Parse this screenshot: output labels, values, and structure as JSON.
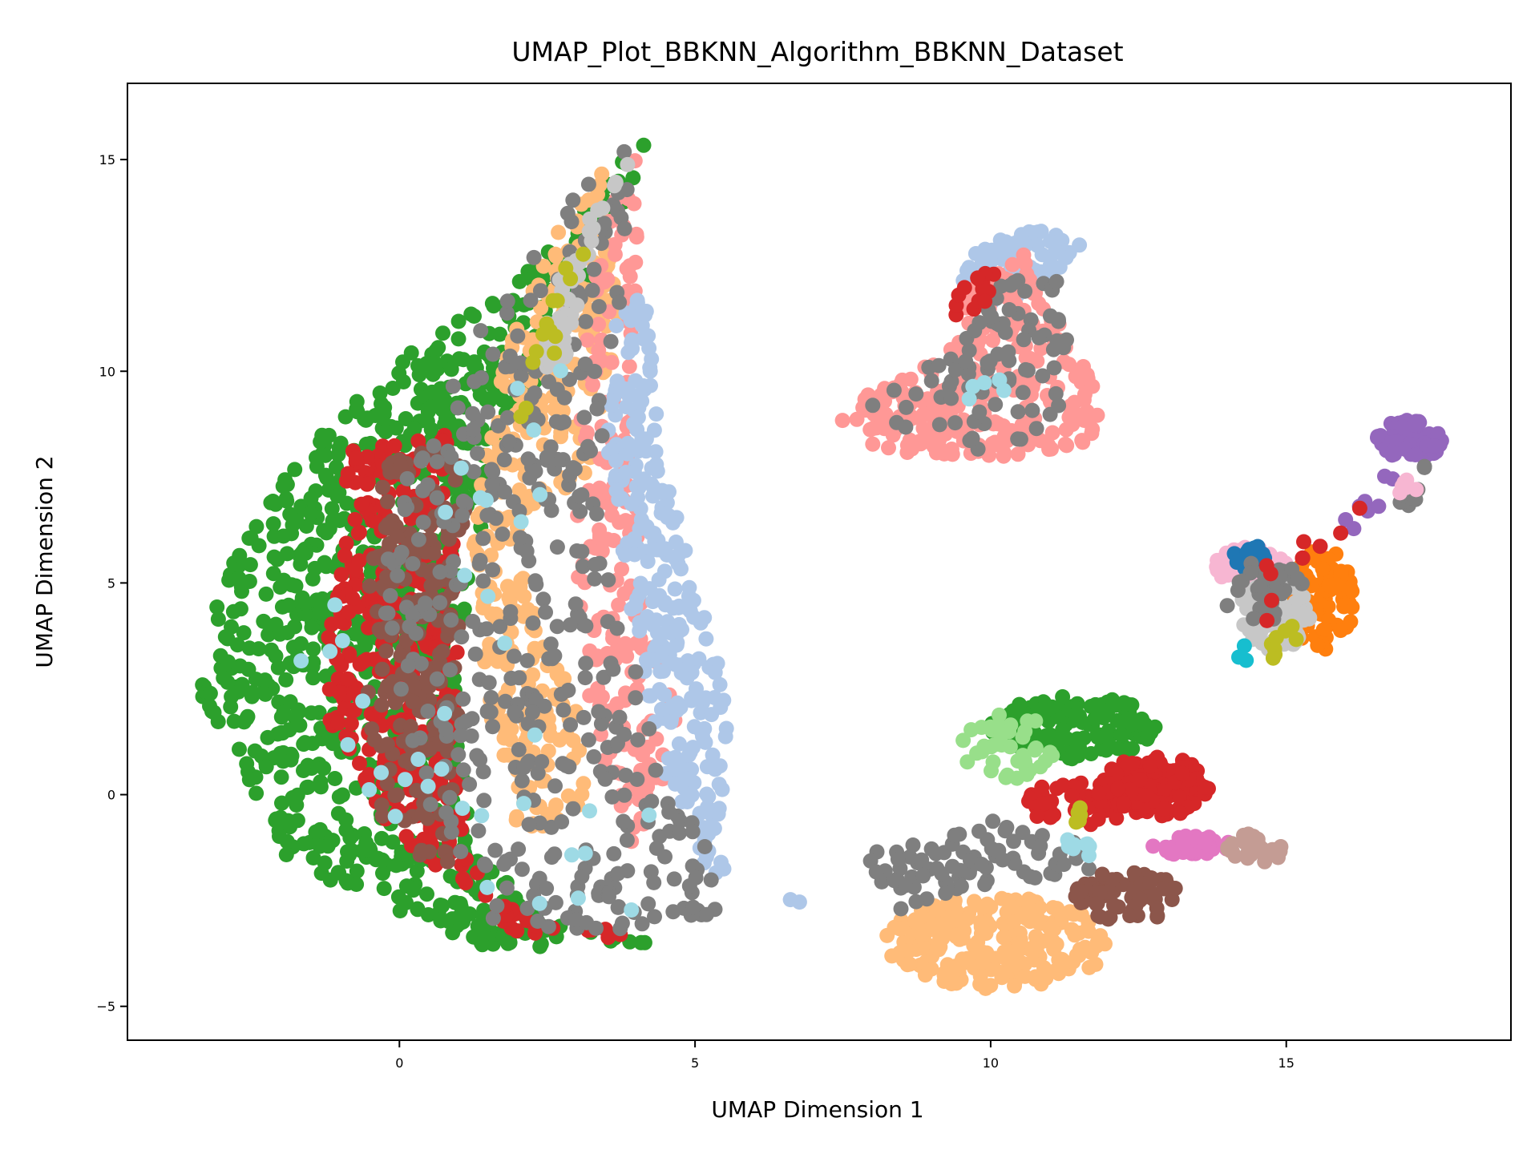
{
  "chart_data": {
    "type": "scatter",
    "title": "UMAP_Plot_BBKNN_Algorithm_BBKNN_Dataset",
    "xlabel": "UMAP Dimension 1",
    "ylabel": "UMAP Dimension 2",
    "xlim": [
      -4.6,
      18.8
    ],
    "ylim": [
      -5.8,
      16.8
    ],
    "xticks": [
      0,
      5,
      10,
      15
    ],
    "yticks": [
      -5,
      0,
      5,
      10,
      15
    ],
    "xtick_labels": [
      "0",
      "5",
      "10",
      "15"
    ],
    "ytick_labels": [
      "−5",
      "0",
      "5",
      "10",
      "15"
    ],
    "grid": false,
    "legend": "none",
    "marker": "circle",
    "clusters": [
      {
        "color": "#2ca02c",
        "type": "poly",
        "poly": [
          [
            -0.8,
            9.6
          ],
          [
            1.8,
            11.9
          ],
          [
            4.2,
            15.6
          ],
          [
            3.8,
            13.5
          ],
          [
            2.0,
            9.0
          ],
          [
            1.2,
            5.5
          ],
          [
            1.0,
            2.0
          ],
          [
            1.2,
            -1.0
          ],
          [
            2.5,
            -3.0
          ],
          [
            4.5,
            -3.6
          ],
          [
            1.5,
            -3.6
          ],
          [
            -1.8,
            -1.8
          ],
          [
            -3.4,
            2.5
          ],
          [
            -3.0,
            5.0
          ],
          [
            -2.0,
            7.5
          ]
        ],
        "n": 900
      },
      {
        "color": "#d62728",
        "type": "poly",
        "poly": [
          [
            -0.8,
            8.2
          ],
          [
            0.8,
            8.5
          ],
          [
            1.0,
            4.0
          ],
          [
            1.0,
            0.0
          ],
          [
            1.5,
            -2.5
          ],
          [
            4.5,
            -3.5
          ],
          [
            2.0,
            -3.3
          ],
          [
            -0.2,
            -0.8
          ],
          [
            -1.2,
            1.5
          ],
          [
            -1.2,
            5.0
          ]
        ],
        "n": 350
      },
      {
        "color": "#8c564b",
        "type": "poly",
        "poly": [
          [
            -0.2,
            8.2
          ],
          [
            1.2,
            8.0
          ],
          [
            1.0,
            4.0
          ],
          [
            1.0,
            0.5
          ],
          [
            0.8,
            -2.0
          ],
          [
            -0.4,
            -0.5
          ],
          [
            -0.6,
            4.0
          ]
        ],
        "n": 200
      },
      {
        "color": "#ffbb78",
        "type": "poly",
        "poly": [
          [
            2.5,
            13.0
          ],
          [
            3.5,
            14.8
          ],
          [
            3.8,
            11.0
          ],
          [
            3.2,
            7.5
          ],
          [
            2.0,
            6.5
          ],
          [
            2.2,
            4.5
          ],
          [
            3.2,
            1.5
          ],
          [
            3.2,
            -0.5
          ],
          [
            2.0,
            -1.0
          ],
          [
            1.5,
            2.0
          ],
          [
            1.2,
            6.0
          ],
          [
            1.8,
            10.5
          ]
        ],
        "n": 320
      },
      {
        "color": "#ff9896",
        "type": "poly",
        "poly": [
          [
            3.6,
            14.8
          ],
          [
            4.1,
            15.5
          ],
          [
            4.0,
            12.0
          ],
          [
            3.9,
            8.0
          ],
          [
            4.2,
            5.0
          ],
          [
            4.8,
            1.0
          ],
          [
            4.0,
            -1.5
          ],
          [
            3.2,
            2.0
          ],
          [
            3.0,
            5.5
          ],
          [
            3.0,
            9.0
          ],
          [
            3.3,
            12.0
          ]
        ],
        "n": 180
      },
      {
        "color": "#aec7e8",
        "type": "poly",
        "poly": [
          [
            3.6,
            11.0
          ],
          [
            4.2,
            12.0
          ],
          [
            4.4,
            8.0
          ],
          [
            5.0,
            5.0
          ],
          [
            5.6,
            2.0
          ],
          [
            5.4,
            -1.5
          ],
          [
            6.5,
            -2.5
          ],
          [
            7.0,
            -2.6
          ],
          [
            5.2,
            -1.8
          ],
          [
            4.5,
            0.5
          ],
          [
            3.8,
            5.0
          ],
          [
            3.5,
            8.0
          ]
        ],
        "n": 280
      },
      {
        "color": "#7f7f7f",
        "type": "poly",
        "poly": [
          [
            2.0,
            12.8
          ],
          [
            3.8,
            15.5
          ],
          [
            4.0,
            13.0
          ],
          [
            3.6,
            10.0
          ],
          [
            3.3,
            7.0
          ],
          [
            3.8,
            4.0
          ],
          [
            4.5,
            0.5
          ],
          [
            5.2,
            -1.0
          ],
          [
            5.4,
            -2.8
          ],
          [
            4.0,
            -3.3
          ],
          [
            1.5,
            -3.0
          ],
          [
            0.5,
            -1.5
          ],
          [
            0.0,
            1.5
          ],
          [
            -0.3,
            5.0
          ],
          [
            0.3,
            8.5
          ],
          [
            1.2,
            10.5
          ]
        ],
        "n": 420
      },
      {
        "color": "#c7c7c7",
        "type": "poly",
        "poly": [
          [
            2.2,
            10.0
          ],
          [
            2.9,
            13.0
          ],
          [
            4.0,
            15.2
          ],
          [
            3.3,
            13.2
          ],
          [
            2.8,
            10.2
          ]
        ],
        "n": 60
      },
      {
        "color": "#9edae5",
        "type": "poly",
        "poly": [
          [
            -1.8,
            4.8
          ],
          [
            1.5,
            8.5
          ],
          [
            2.8,
            12.8
          ],
          [
            3.0,
            6.5
          ],
          [
            5.5,
            -2.8
          ],
          [
            2.0,
            -3.0
          ],
          [
            -1.5,
            0.2
          ]
        ],
        "n": 38
      },
      {
        "color": "#bcbd22",
        "type": "poly",
        "poly": [
          [
            2.2,
            9.0
          ],
          [
            2.7,
            10.6
          ],
          [
            3.3,
            13.6
          ],
          [
            2.6,
            12.0
          ],
          [
            1.9,
            8.8
          ]
        ],
        "n": 14
      },
      {
        "color": "#ffbb78",
        "type": "ellipse",
        "cx": 10.1,
        "cy": -3.5,
        "rx": 1.9,
        "ry": 1.1,
        "n": 240
      },
      {
        "color": "#7f7f7f",
        "type": "poly",
        "poly": [
          [
            7.9,
            -1.4
          ],
          [
            10.0,
            -0.6
          ],
          [
            11.6,
            -1.2
          ],
          [
            11.8,
            -1.8
          ],
          [
            9.5,
            -2.2
          ],
          [
            8.2,
            -3.0
          ]
        ],
        "n": 80
      },
      {
        "color": "#2ca02c",
        "type": "ellipse",
        "cx": 11.4,
        "cy": 1.6,
        "rx": 1.4,
        "ry": 0.75,
        "n": 140
      },
      {
        "color": "#98df8a",
        "type": "ellipse",
        "cx": 10.3,
        "cy": 1.1,
        "rx": 0.8,
        "ry": 0.8,
        "n": 40
      },
      {
        "color": "#d62728",
        "type": "ellipse",
        "cx": 12.8,
        "cy": 0.2,
        "rx": 0.9,
        "ry": 0.75,
        "n": 130
      },
      {
        "color": "#d62728",
        "type": "ellipse",
        "cx": 11.5,
        "cy": -0.2,
        "rx": 0.9,
        "ry": 0.55,
        "n": 60
      },
      {
        "color": "#8c564b",
        "type": "ellipse",
        "cx": 12.3,
        "cy": -2.4,
        "rx": 0.9,
        "ry": 0.6,
        "n": 80
      },
      {
        "color": "#e377c2",
        "type": "ellipse",
        "cx": 13.4,
        "cy": -1.2,
        "rx": 0.7,
        "ry": 0.25,
        "n": 40
      },
      {
        "color": "#c49c94",
        "type": "ellipse",
        "cx": 14.5,
        "cy": -1.3,
        "rx": 0.5,
        "ry": 0.4,
        "n": 30
      },
      {
        "color": "#9edae5",
        "type": "poly",
        "poly": [
          [
            11.3,
            -1.0
          ],
          [
            11.9,
            -1.2
          ],
          [
            11.7,
            -1.5
          ],
          [
            11.2,
            -1.3
          ]
        ],
        "n": 8
      },
      {
        "color": "#bcbd22",
        "type": "poly",
        "poly": [
          [
            11.5,
            -0.2
          ],
          [
            11.7,
            -0.6
          ],
          [
            11.4,
            -0.9
          ]
        ],
        "n": 5
      },
      {
        "color": "#aec7e8",
        "type": "poly",
        "poly": [
          [
            9.7,
            12.8
          ],
          [
            10.6,
            13.4
          ],
          [
            11.6,
            13.1
          ],
          [
            11.0,
            12.1
          ],
          [
            10.0,
            11.5
          ],
          [
            9.5,
            12.0
          ]
        ],
        "n": 100
      },
      {
        "color": "#ff9896",
        "type": "poly",
        "poly": [
          [
            7.4,
            8.7
          ],
          [
            8.0,
            9.7
          ],
          [
            9.2,
            10.3
          ],
          [
            9.8,
            12.2
          ],
          [
            10.6,
            12.8
          ],
          [
            11.2,
            11.0
          ],
          [
            11.5,
            10.2
          ],
          [
            12.0,
            9.6
          ],
          [
            11.7,
            8.3
          ],
          [
            10.5,
            7.9
          ],
          [
            9.6,
            8.0
          ],
          [
            8.3,
            7.9
          ]
        ],
        "n": 260
      },
      {
        "color": "#7f7f7f",
        "type": "poly",
        "poly": [
          [
            7.8,
            9.4
          ],
          [
            8.7,
            9.8
          ],
          [
            9.6,
            11.6
          ],
          [
            10.6,
            12.6
          ],
          [
            11.2,
            12.8
          ],
          [
            11.3,
            10.6
          ],
          [
            11.1,
            8.7
          ],
          [
            10.1,
            8.1
          ],
          [
            9.0,
            8.3
          ],
          [
            8.2,
            8.3
          ]
        ],
        "n": 90
      },
      {
        "color": "#d62728",
        "type": "poly",
        "poly": [
          [
            9.2,
            11.2
          ],
          [
            9.6,
            12.2
          ],
          [
            10.1,
            12.6
          ],
          [
            9.9,
            11.3
          ]
        ],
        "n": 14
      },
      {
        "color": "#9edae5",
        "type": "poly",
        "poly": [
          [
            8.8,
            8.7
          ],
          [
            10.3,
            10.8
          ],
          [
            10.7,
            9.8
          ]
        ],
        "n": 5
      },
      {
        "color": "#9467bd",
        "type": "ellipse",
        "cx": 17.1,
        "cy": 8.4,
        "rx": 0.6,
        "ry": 0.45,
        "n": 80
      },
      {
        "color": "#9467bd",
        "type": "poly",
        "poly": [
          [
            15.9,
            6.5
          ],
          [
            16.6,
            7.6
          ],
          [
            17.0,
            7.4
          ],
          [
            16.1,
            6.1
          ]
        ],
        "n": 8
      },
      {
        "color": "#ff7f0e",
        "type": "ellipse",
        "cx": 15.6,
        "cy": 4.6,
        "rx": 0.55,
        "ry": 1.2,
        "n": 90
      },
      {
        "color": "#f7b6d2",
        "type": "ellipse",
        "cx": 14.4,
        "cy": 5.4,
        "rx": 0.6,
        "ry": 0.45,
        "n": 60
      },
      {
        "color": "#1f77b4",
        "type": "ellipse",
        "cx": 14.5,
        "cy": 5.6,
        "rx": 0.4,
        "ry": 0.3,
        "n": 14
      },
      {
        "color": "#c7c7c7",
        "type": "ellipse",
        "cx": 14.8,
        "cy": 4.3,
        "rx": 0.6,
        "ry": 0.9,
        "n": 70
      },
      {
        "color": "#7f7f7f",
        "type": "ellipse",
        "cx": 14.6,
        "cy": 4.8,
        "rx": 0.7,
        "ry": 0.8,
        "n": 30
      },
      {
        "color": "#d62728",
        "type": "poly",
        "poly": [
          [
            14.4,
            3.0
          ],
          [
            14.6,
            5.5
          ],
          [
            16.2,
            6.8
          ],
          [
            16.6,
            7.0
          ],
          [
            15.0,
            5.0
          ]
        ],
        "n": 10
      },
      {
        "color": "#bcbd22",
        "type": "poly",
        "poly": [
          [
            14.6,
            3.4
          ],
          [
            15.1,
            4.2
          ],
          [
            15.2,
            3.6
          ],
          [
            14.8,
            3.2
          ]
        ],
        "n": 8
      },
      {
        "color": "#17becf",
        "type": "poly",
        "poly": [
          [
            14.1,
            3.2
          ],
          [
            14.8,
            4.4
          ],
          [
            14.4,
            3.0
          ]
        ],
        "n": 3
      },
      {
        "color": "#7f7f7f",
        "type": "poly",
        "poly": [
          [
            16.8,
            6.8
          ],
          [
            17.4,
            7.9
          ],
          [
            17.2,
            6.7
          ]
        ],
        "n": 10
      },
      {
        "color": "#f7b6d2",
        "type": "poly",
        "poly": [
          [
            16.6,
            7.0
          ],
          [
            17.5,
            7.9
          ],
          [
            17.3,
            7.2
          ]
        ],
        "n": 6
      }
    ]
  }
}
